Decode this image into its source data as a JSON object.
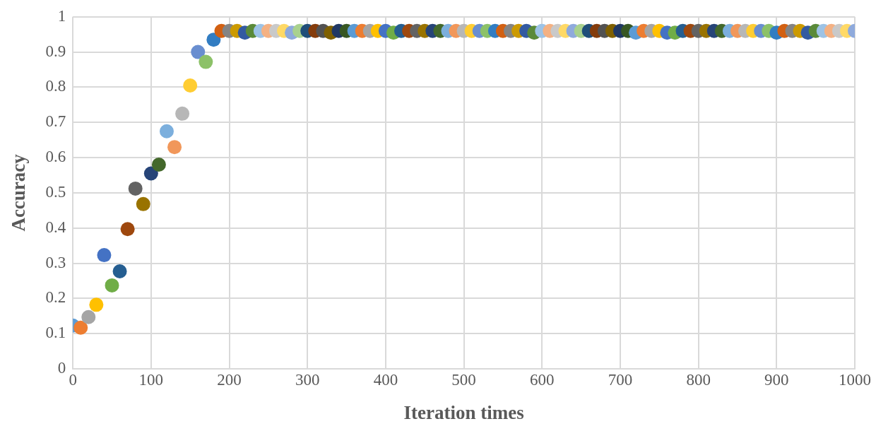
{
  "chart_data": {
    "type": "scatter",
    "xlabel": "Iteration times",
    "ylabel": "Accuracy",
    "x": [
      0,
      10,
      20,
      30,
      40,
      50,
      60,
      70,
      80,
      90,
      100,
      110,
      120,
      130,
      140,
      150,
      160,
      170,
      180,
      190,
      200,
      210,
      220,
      230,
      240,
      250,
      260,
      270,
      280,
      290,
      300,
      310,
      320,
      330,
      340,
      350,
      360,
      370,
      380,
      390,
      400,
      410,
      420,
      430,
      440,
      450,
      460,
      470,
      480,
      490,
      500,
      510,
      520,
      530,
      540,
      550,
      560,
      570,
      580,
      590,
      600,
      610,
      620,
      630,
      640,
      650,
      660,
      670,
      680,
      690,
      700,
      710,
      720,
      730,
      740,
      750,
      760,
      770,
      780,
      790,
      800,
      810,
      820,
      830,
      840,
      850,
      860,
      870,
      880,
      890,
      900,
      910,
      920,
      930,
      940,
      950,
      960,
      970,
      980,
      990,
      1000
    ],
    "values": [
      0.123,
      0.117,
      0.147,
      0.182,
      0.323,
      0.237,
      0.277,
      0.397,
      0.512,
      0.468,
      0.555,
      0.58,
      0.675,
      0.63,
      0.725,
      0.805,
      0.9,
      0.872,
      0.935,
      0.96,
      0.96,
      0.96,
      0.955,
      0.96,
      0.96,
      0.96,
      0.96,
      0.96,
      0.955,
      0.96,
      0.96,
      0.96,
      0.96,
      0.955,
      0.96,
      0.96,
      0.96,
      0.96,
      0.96,
      0.96,
      0.96,
      0.955,
      0.96,
      0.96,
      0.96,
      0.96,
      0.96,
      0.96,
      0.96,
      0.96,
      0.96,
      0.96,
      0.96,
      0.96,
      0.96,
      0.96,
      0.96,
      0.96,
      0.96,
      0.955,
      0.96,
      0.96,
      0.96,
      0.96,
      0.96,
      0.96,
      0.96,
      0.96,
      0.96,
      0.96,
      0.96,
      0.96,
      0.955,
      0.96,
      0.96,
      0.96,
      0.955,
      0.955,
      0.96,
      0.96,
      0.96,
      0.96,
      0.96,
      0.96,
      0.96,
      0.96,
      0.96,
      0.96,
      0.96,
      0.96,
      0.955,
      0.96,
      0.96,
      0.96,
      0.955,
      0.96,
      0.96,
      0.96,
      0.96,
      0.96,
      0.96
    ],
    "colors": [
      "#5b9bd5",
      "#ed7d31",
      "#a5a5a5",
      "#ffc000",
      "#4472c4",
      "#70ad47",
      "#255e91",
      "#9e480e",
      "#636363",
      "#997300",
      "#264478",
      "#43682b",
      "#7cafdd",
      "#f1975a",
      "#b7b7b7",
      "#ffcd33",
      "#698ed0",
      "#8cc168",
      "#327dc2",
      "#d26012",
      "#848484",
      "#cc9a00",
      "#335aa1",
      "#5a8a39",
      "#9dc3e6",
      "#f4b183",
      "#c9c9c9",
      "#ffd966",
      "#8faadc",
      "#a9d18e",
      "#1f4e79",
      "#843c0c",
      "#525252",
      "#7f6000",
      "#203864",
      "#385723",
      "#5b9bd5",
      "#ed7d31",
      "#a5a5a5",
      "#ffc000",
      "#4472c4",
      "#70ad47",
      "#255e91",
      "#9e480e",
      "#636363",
      "#997300",
      "#264478",
      "#43682b",
      "#7cafdd",
      "#f1975a",
      "#b7b7b7",
      "#ffcd33",
      "#698ed0",
      "#8cc168",
      "#327dc2",
      "#d26012",
      "#848484",
      "#cc9a00",
      "#335aa1",
      "#5a8a39",
      "#9dc3e6",
      "#f4b183",
      "#c9c9c9",
      "#ffd966",
      "#8faadc",
      "#a9d18e",
      "#1f4e79",
      "#843c0c",
      "#525252",
      "#7f6000",
      "#203864",
      "#385723",
      "#5b9bd5",
      "#ed7d31",
      "#a5a5a5",
      "#ffc000",
      "#4472c4",
      "#70ad47",
      "#255e91",
      "#9e480e",
      "#636363",
      "#997300",
      "#264478",
      "#43682b",
      "#7cafdd",
      "#f1975a",
      "#b7b7b7",
      "#ffcd33",
      "#698ed0",
      "#8cc168",
      "#327dc2",
      "#d26012",
      "#848484",
      "#cc9a00",
      "#335aa1",
      "#5a8a39",
      "#9dc3e6",
      "#f4b183",
      "#c9c9c9",
      "#ffd966",
      "#8faadc"
    ],
    "xlim": [
      0,
      1000
    ],
    "xticks": [
      0,
      100,
      200,
      300,
      400,
      500,
      600,
      700,
      800,
      900,
      1000
    ],
    "ylim": [
      0,
      1
    ],
    "yticks": [
      0,
      0.1,
      0.2,
      0.3,
      0.4,
      0.5,
      0.6,
      0.7,
      0.8,
      0.9,
      1
    ],
    "grid": true,
    "legend": false,
    "marker": "circle"
  }
}
